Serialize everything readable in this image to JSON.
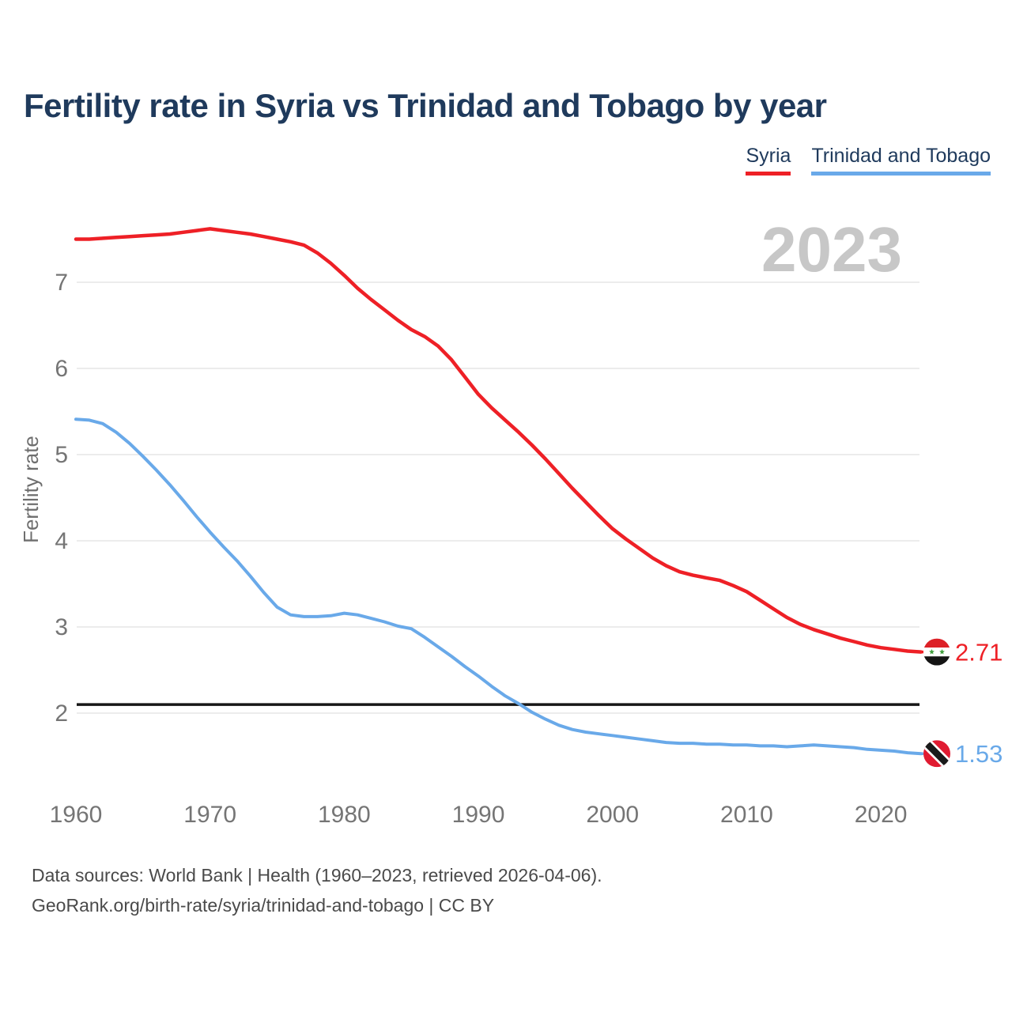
{
  "title": "Fertility rate in Syria vs Trinidad and Tobago by year",
  "watermark_year": "2023",
  "legend": [
    {
      "label": "Syria",
      "color": "#ee2026"
    },
    {
      "label": "Trinidad and Tobago",
      "color": "#69a9e9"
    }
  ],
  "y_axis": {
    "label": "Fertility rate",
    "ticks": [
      7,
      6,
      5,
      4,
      3,
      2
    ]
  },
  "x_axis": {
    "ticks": [
      1960,
      1970,
      1980,
      1990,
      2000,
      2010,
      2020
    ]
  },
  "footer": {
    "line1": "Data sources: World Bank | Health (1960–2023, retrieved 2026-04-06).",
    "line2": "GeoRank.org/birth-rate/syria/trinidad-and-tobago | CC BY"
  },
  "chart_data": {
    "type": "line",
    "title": "Fertility rate in Syria vs Trinidad and Tobago by year",
    "xlabel": "",
    "ylabel": "Fertility rate",
    "xlim": [
      1960,
      2023
    ],
    "ylim": [
      1.2,
      7.9
    ],
    "grid": "horizontal",
    "legend_position": "top-right",
    "x_ticks": [
      1960,
      1970,
      1980,
      1990,
      2000,
      2010,
      2020
    ],
    "y_ticks": [
      7,
      6,
      5,
      4,
      3,
      2
    ],
    "reference_line": {
      "value": 2.1,
      "color": "#161616"
    },
    "x": [
      1960,
      1961,
      1962,
      1963,
      1964,
      1965,
      1966,
      1967,
      1968,
      1969,
      1970,
      1971,
      1972,
      1973,
      1974,
      1975,
      1976,
      1977,
      1978,
      1979,
      1980,
      1981,
      1982,
      1983,
      1984,
      1985,
      1986,
      1987,
      1988,
      1989,
      1990,
      1991,
      1992,
      1993,
      1994,
      1995,
      1996,
      1997,
      1998,
      1999,
      2000,
      2001,
      2002,
      2003,
      2004,
      2005,
      2006,
      2007,
      2008,
      2009,
      2010,
      2011,
      2012,
      2013,
      2014,
      2015,
      2016,
      2017,
      2018,
      2019,
      2020,
      2021,
      2022,
      2023
    ],
    "series": [
      {
        "name": "Syria",
        "color": "#ee2026",
        "end_label": "2.71",
        "flag_icon": "syria-flag-icon",
        "values": [
          7.5,
          7.5,
          7.51,
          7.52,
          7.53,
          7.54,
          7.55,
          7.56,
          7.58,
          7.6,
          7.62,
          7.6,
          7.58,
          7.56,
          7.53,
          7.5,
          7.47,
          7.43,
          7.34,
          7.22,
          7.08,
          6.93,
          6.8,
          6.68,
          6.56,
          6.45,
          6.37,
          6.26,
          6.1,
          5.9,
          5.7,
          5.54,
          5.4,
          5.26,
          5.11,
          4.95,
          4.78,
          4.61,
          4.45,
          4.29,
          4.14,
          4.02,
          3.91,
          3.8,
          3.71,
          3.64,
          3.6,
          3.57,
          3.54,
          3.48,
          3.41,
          3.31,
          3.21,
          3.11,
          3.03,
          2.97,
          2.92,
          2.87,
          2.83,
          2.79,
          2.76,
          2.74,
          2.72,
          2.71
        ]
      },
      {
        "name": "Trinidad and Tobago",
        "color": "#69a9e9",
        "end_label": "1.53",
        "flag_icon": "trinidad-and-tobago-flag-icon",
        "values": [
          5.41,
          5.4,
          5.36,
          5.26,
          5.13,
          4.98,
          4.82,
          4.65,
          4.47,
          4.28,
          4.1,
          3.93,
          3.77,
          3.59,
          3.4,
          3.23,
          3.14,
          3.12,
          3.12,
          3.13,
          3.16,
          3.14,
          3.1,
          3.06,
          3.01,
          2.98,
          2.88,
          2.77,
          2.66,
          2.54,
          2.43,
          2.31,
          2.2,
          2.11,
          2.01,
          1.93,
          1.86,
          1.81,
          1.78,
          1.76,
          1.74,
          1.72,
          1.7,
          1.68,
          1.66,
          1.65,
          1.65,
          1.64,
          1.64,
          1.63,
          1.63,
          1.62,
          1.62,
          1.61,
          1.62,
          1.63,
          1.62,
          1.61,
          1.6,
          1.58,
          1.57,
          1.56,
          1.54,
          1.53
        ]
      }
    ]
  }
}
